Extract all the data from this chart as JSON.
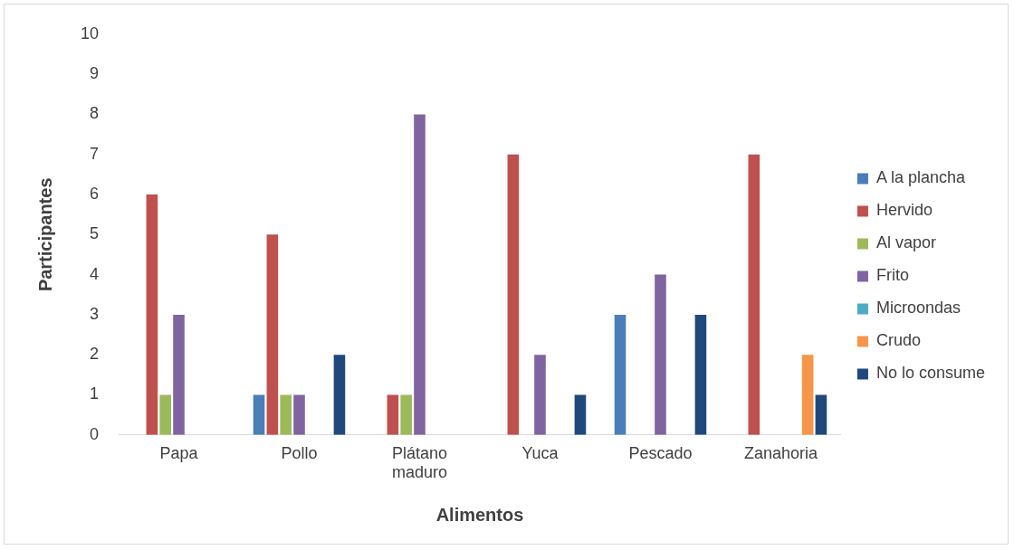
{
  "chart_data": {
    "type": "bar",
    "xlabel": "Alimentos",
    "ylabel": "Participantes",
    "categories": [
      "Papa",
      "Pollo",
      "Plátano maduro",
      "Yuca",
      "Pescado",
      "Zanahoria"
    ],
    "series": [
      {
        "name": "A la plancha",
        "color": "#4a7ebb",
        "values": [
          0,
          1,
          0,
          0,
          3,
          0
        ]
      },
      {
        "name": "Hervido",
        "color": "#c0504d",
        "values": [
          6,
          5,
          1,
          7,
          0,
          7
        ]
      },
      {
        "name": "Al vapor",
        "color": "#9bbb59",
        "values": [
          1,
          1,
          1,
          0,
          0,
          0
        ]
      },
      {
        "name": "Frito",
        "color": "#8064a2",
        "values": [
          3,
          1,
          8,
          2,
          4,
          0
        ]
      },
      {
        "name": "Microondas",
        "color": "#4bacc6",
        "values": [
          0,
          0,
          0,
          0,
          0,
          0
        ]
      },
      {
        "name": "Crudo",
        "color": "#f79646",
        "values": [
          0,
          0,
          0,
          0,
          0,
          2
        ]
      },
      {
        "name": "No lo consume",
        "color": "#1f497d",
        "values": [
          0,
          2,
          0,
          1,
          3,
          1
        ]
      }
    ],
    "ylim": [
      0,
      10
    ],
    "yticks": [
      0,
      1,
      2,
      3,
      4,
      5,
      6,
      7,
      8,
      9,
      10
    ],
    "grid": false,
    "legend": "right"
  }
}
